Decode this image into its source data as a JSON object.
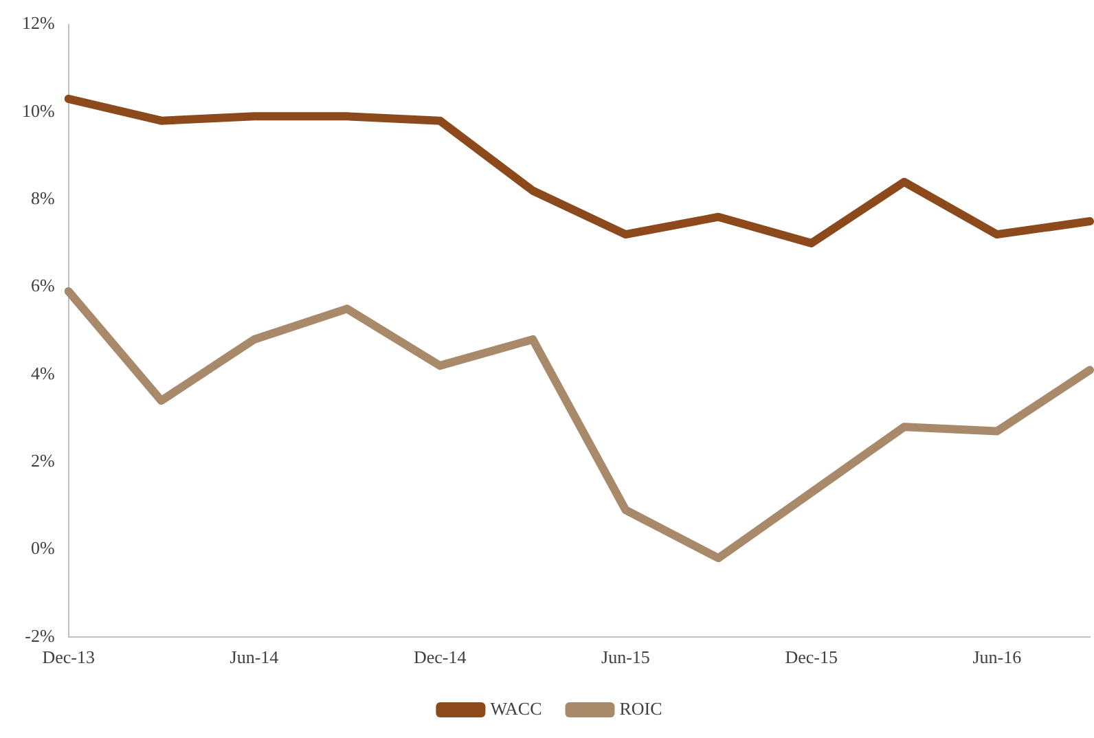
{
  "chart_data": {
    "type": "line",
    "categories": [
      "Dec-13",
      null,
      "Jun-14",
      null,
      "Dec-14",
      null,
      "Jun-15",
      null,
      "Dec-15",
      null,
      "Jun-16",
      null
    ],
    "series": [
      {
        "name": "WACC",
        "color": "#8c4a1c",
        "values": [
          10.3,
          9.8,
          9.9,
          9.9,
          9.8,
          8.2,
          7.2,
          7.6,
          7.0,
          8.4,
          7.2,
          7.5
        ]
      },
      {
        "name": "ROIC",
        "color": "#a8896a",
        "values": [
          5.9,
          3.4,
          4.8,
          5.5,
          4.2,
          4.8,
          0.9,
          -0.2,
          1.3,
          2.8,
          2.7,
          4.1
        ]
      }
    ],
    "ylim": [
      -2,
      12
    ],
    "yticks": [
      {
        "value": -2,
        "label": "-2%"
      },
      {
        "value": 0,
        "label": "0%"
      },
      {
        "value": 2,
        "label": "2%"
      },
      {
        "value": 4,
        "label": "4%"
      },
      {
        "value": 6,
        "label": "6%"
      },
      {
        "value": 8,
        "label": "8%"
      },
      {
        "value": 10,
        "label": "10%"
      },
      {
        "value": 12,
        "label": "12%"
      }
    ],
    "grid": false,
    "legend": "bottom"
  }
}
